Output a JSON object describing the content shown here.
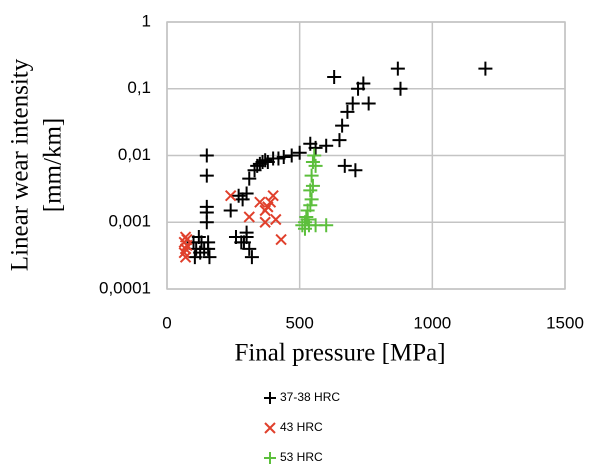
{
  "chart_data": {
    "type": "scatter",
    "x_label": "Final pressure [MPa]",
    "y_label": [
      "Linear wear intensity",
      "[mm/km]"
    ],
    "xlim": [
      0,
      1500
    ],
    "xticks": [
      0,
      500,
      1000,
      1500
    ],
    "ylim": [
      0.0001,
      1
    ],
    "y_log": true,
    "yticks": [
      {
        "value": 0.0001,
        "label": "0,0001"
      },
      {
        "value": 0.001,
        "label": "0,001"
      },
      {
        "value": 0.01,
        "label": "0,01"
      },
      {
        "value": 0.1,
        "label": "0,1"
      },
      1
    ],
    "grid": true,
    "series": [
      {
        "name": "37-38 HRC",
        "color": "#000000",
        "marker": "plus",
        "x": [
          100,
          110,
          120,
          130,
          105,
          125,
          140,
          150,
          150,
          150,
          150,
          150,
          155,
          160,
          155,
          240,
          260,
          280,
          300,
          290,
          310,
          320,
          300,
          270,
          285,
          300,
          310,
          330,
          340,
          350,
          360,
          370,
          380,
          400,
          420,
          440,
          470,
          500,
          540,
          560,
          600,
          630,
          650,
          660,
          670,
          680,
          700,
          710,
          720,
          740,
          760,
          870,
          880,
          1200
        ],
        "y": [
          0.0005,
          0.0004,
          0.0006,
          0.0005,
          0.0003,
          0.00035,
          0.0004,
          0.01,
          0.005,
          0.0017,
          0.0014,
          0.001,
          0.0005,
          0.0003,
          0.0004,
          0.0015,
          0.0006,
          0.0005,
          0.0006,
          0.0005,
          0.0004,
          0.0003,
          0.0007,
          0.0025,
          0.0022,
          0.0027,
          0.0045,
          0.006,
          0.007,
          0.0075,
          0.008,
          0.0085,
          0.008,
          0.009,
          0.009,
          0.0095,
          0.01,
          0.011,
          0.015,
          0.013,
          0.014,
          0.15,
          0.017,
          0.028,
          0.007,
          0.045,
          0.06,
          0.006,
          0.1,
          0.12,
          0.06,
          0.2,
          0.1,
          0.2
        ]
      },
      {
        "name": "43 HRC",
        "color": "#e0402c",
        "marker": "cross",
        "x": [
          65,
          70,
          75,
          65,
          70,
          75,
          70,
          240,
          310,
          350,
          370,
          380,
          390,
          400,
          410,
          430,
          370
        ],
        "y": [
          0.0005,
          0.0004,
          0.00045,
          0.00035,
          0.0003,
          0.00055,
          0.0006,
          0.0025,
          0.0012,
          0.002,
          0.0015,
          0.0017,
          0.002,
          0.0025,
          0.0011,
          0.00055,
          0.001
        ]
      },
      {
        "name": "53 HRC",
        "color": "#5cbf3c",
        "marker": "plus",
        "x": [
          510,
          520,
          525,
          530,
          535,
          540,
          545,
          550,
          555,
          560,
          540,
          545,
          550,
          520,
          530,
          560,
          600
        ],
        "y": [
          0.0009,
          0.001,
          0.0012,
          0.0015,
          0.0009,
          0.003,
          0.005,
          0.008,
          0.01,
          0.007,
          0.0018,
          0.0022,
          0.0035,
          0.0008,
          0.0011,
          0.0009,
          0.0009
        ]
      }
    ]
  }
}
